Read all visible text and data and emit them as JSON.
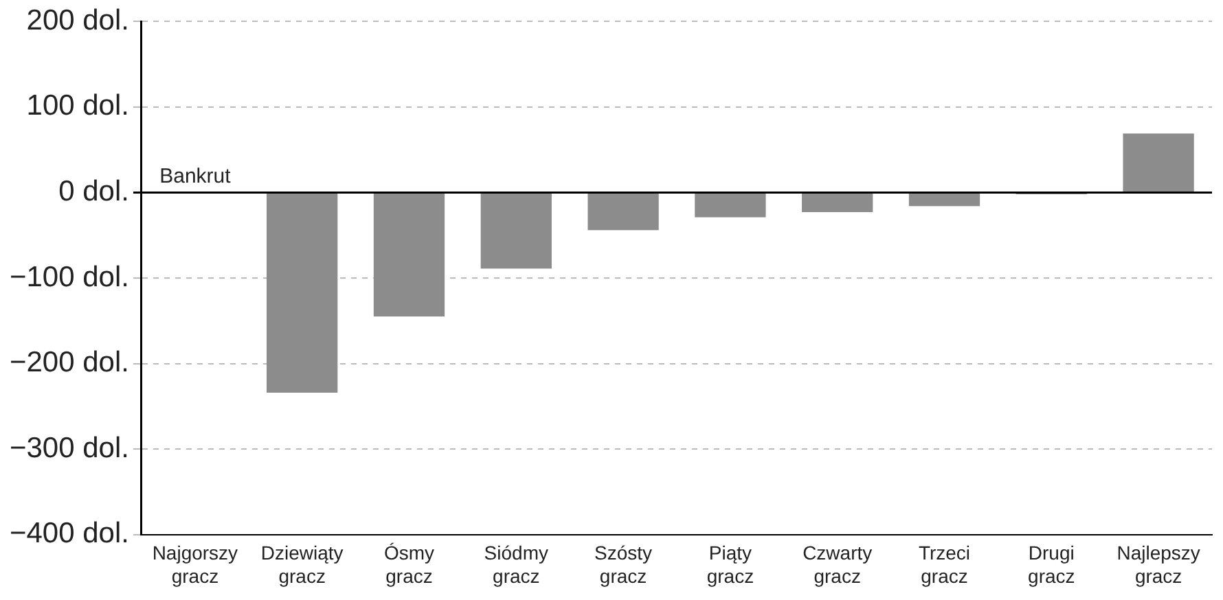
{
  "chart_data": {
    "type": "bar",
    "categories": [
      "Najgorszy gracz",
      "Dziewiąty gracz",
      "Ósmy gracz",
      "Siódmy gracz",
      "Szósty gracz",
      "Piąty gracz",
      "Czwarty gracz",
      "Trzeci gracz",
      "Drugi gracz",
      "Najlepszy gracz"
    ],
    "values": [
      0,
      -234,
      -145,
      -89,
      -44,
      -29,
      -23,
      -16,
      -2,
      69
    ],
    "color": "#8c8c8c",
    "ylim": [
      -400,
      200
    ],
    "yticks": [
      {
        "value": -400,
        "label": "−400 dol."
      },
      {
        "value": -300,
        "label": "−300 dol."
      },
      {
        "value": -200,
        "label": "−200 dol."
      },
      {
        "value": -100,
        "label": "−100 dol."
      },
      {
        "value": 0,
        "label": "0 dol."
      },
      {
        "value": 100,
        "label": "100 dol."
      },
      {
        "value": 200,
        "label": "200 dol."
      }
    ],
    "grid": "y",
    "annotations": [
      {
        "text": "Bankrut",
        "x": "Najgorszy gracz",
        "y": 0
      }
    ]
  }
}
